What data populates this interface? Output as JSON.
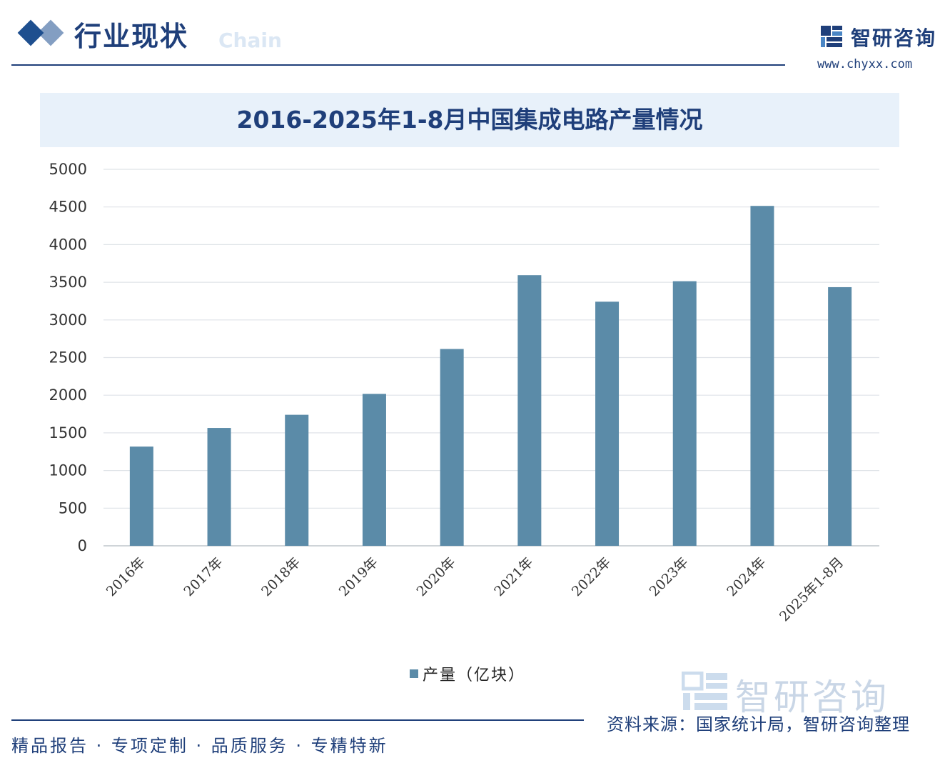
{
  "header": {
    "section_title": "行业现状",
    "ghost_text": "Chain",
    "brand_name": "智研咨询",
    "brand_url": "www.chyxx.com"
  },
  "chart_data": {
    "type": "bar",
    "title": "2016-2025年1-8月中国集成电路产量情况",
    "categories": [
      "2016年",
      "2017年",
      "2018年",
      "2019年",
      "2020年",
      "2021年",
      "2022年",
      "2023年",
      "2024年",
      "2025年1-8月"
    ],
    "series": [
      {
        "name": "产量（亿块）",
        "values": [
          1318,
          1565,
          1740,
          2018,
          2614,
          3594,
          3242,
          3514,
          4514,
          3435
        ],
        "color": "#5b8ba8"
      }
    ],
    "yticks": [
      0,
      500,
      1000,
      1500,
      2000,
      2500,
      3000,
      3500,
      4000,
      4500,
      5000
    ],
    "ylim": [
      0,
      5000
    ],
    "grid": true,
    "legend_position": "bottom"
  },
  "watermark": {
    "text": "智研咨询"
  },
  "footer": {
    "source": "资料来源：国家统计局，智研咨询整理",
    "slogan": "精品报告 · 专项定制 · 品质服务 · 专精特新"
  }
}
